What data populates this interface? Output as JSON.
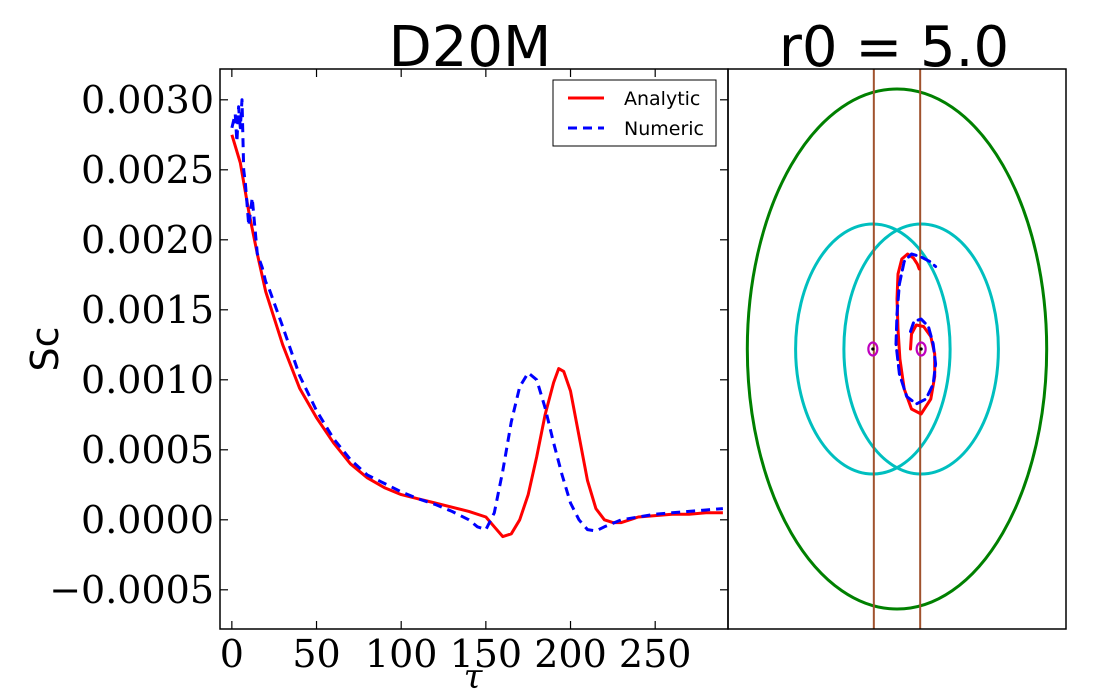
{
  "chart_data": [
    {
      "type": "line",
      "title": "D20M",
      "xlabel": "τ",
      "ylabel": "Sc",
      "xlim": [
        -7,
        293
      ],
      "ylim": [
        -0.00078,
        0.00322
      ],
      "xticks": [
        0,
        50,
        100,
        150,
        200,
        250
      ],
      "yticks": [
        -0.0005,
        0.0,
        0.0005,
        0.001,
        0.0015,
        0.002,
        0.0025,
        0.003
      ],
      "ytick_labels": [
        "−0.0005",
        "0.0000",
        "0.0005",
        "0.0010",
        "0.0015",
        "0.0020",
        "0.0025",
        "0.0030"
      ],
      "grid": false,
      "legend": "top-right",
      "series": [
        {
          "name": "Analytic",
          "color": "#ff0000",
          "style": "solid",
          "x": [
            0,
            5,
            10,
            15,
            20,
            30,
            40,
            50,
            60,
            70,
            80,
            90,
            100,
            110,
            120,
            130,
            140,
            150,
            155,
            160,
            165,
            170,
            175,
            180,
            185,
            190,
            193,
            196,
            200,
            205,
            210,
            215,
            220,
            225,
            230,
            240,
            250,
            260,
            270,
            280,
            290
          ],
          "y": [
            0.00275,
            0.00255,
            0.0022,
            0.0019,
            0.00163,
            0.00125,
            0.00094,
            0.00073,
            0.00055,
            0.0004,
            0.0003,
            0.00023,
            0.00018,
            0.00015,
            0.00012,
            9e-05,
            6e-05,
            2e-05,
            -5e-05,
            -0.00012,
            -0.0001,
            0.0,
            0.00018,
            0.00045,
            0.00075,
            0.00098,
            0.00108,
            0.00106,
            0.00092,
            0.0006,
            0.00028,
            8e-05,
            0.0,
            -2e-05,
            -2e-05,
            2e-05,
            3e-05,
            4e-05,
            4e-05,
            5e-05,
            5e-05
          ]
        },
        {
          "name": "Numeric",
          "color": "#0000ff",
          "style": "dashed",
          "x": [
            0,
            2,
            3,
            4,
            5,
            6,
            7,
            8,
            10,
            12,
            15,
            18,
            20,
            22,
            30,
            40,
            50,
            60,
            70,
            80,
            90,
            100,
            110,
            120,
            130,
            140,
            145,
            150,
            155,
            160,
            165,
            170,
            175,
            180,
            185,
            190,
            195,
            200,
            205,
            210,
            215,
            220,
            230,
            240,
            250,
            260,
            270,
            280,
            290
          ],
          "y": [
            0.0028,
            0.0029,
            0.0027,
            0.00295,
            0.0028,
            0.003,
            0.0025,
            0.0024,
            0.0021,
            0.0023,
            0.0019,
            0.0018,
            0.0017,
            0.00165,
            0.00138,
            0.00103,
            0.00078,
            0.00058,
            0.00043,
            0.00032,
            0.00026,
            0.0002,
            0.00015,
            0.00011,
            6e-05,
            0.0,
            -5e-05,
            -7e-05,
            5e-05,
            0.00035,
            0.0007,
            0.00095,
            0.00105,
            0.001,
            0.0008,
            0.00055,
            0.00032,
            0.00012,
            0.0,
            -7e-05,
            -8e-05,
            -5e-05,
            0.0,
            2e-05,
            4e-05,
            5e-05,
            6e-05,
            7e-05,
            8e-05
          ]
        }
      ]
    },
    {
      "type": "diagram",
      "title": "r0 = 5.0",
      "xlim": [
        -3.5,
        3.5
      ],
      "ylim": [
        -5.6,
        5.6
      ],
      "axes_ticks": false,
      "elements": {
        "ellipses": [
          {
            "role": "outer",
            "color": "#008000",
            "cx": 0.0,
            "cy": 0.0,
            "rx": 3.1,
            "ry": 5.2
          },
          {
            "role": "left",
            "color": "#00bfbf",
            "cx": -0.5,
            "cy": 0.0,
            "rx": 1.6,
            "ry": 2.5
          },
          {
            "role": "right",
            "color": "#00bfbf",
            "cx": 0.5,
            "cy": 0.0,
            "rx": 1.6,
            "ry": 2.5
          }
        ],
        "vlines": [
          {
            "color": "#a0522d",
            "x": -0.48
          },
          {
            "color": "#a0522d",
            "x": 0.48
          }
        ],
        "markers": [
          {
            "color": "#bf00bf",
            "x": -0.5,
            "y": 0.0
          },
          {
            "color": "#bf00bf",
            "x": 0.5,
            "y": 0.0
          }
        ],
        "tracks": [
          {
            "name": "Analytic",
            "color": "#ff0000",
            "style": "solid",
            "x": [
              0.28,
              0.3,
              0.4,
              0.55,
              0.7,
              0.78,
              0.78,
              0.7,
              0.5,
              0.3,
              0.15,
              0.06,
              0.02,
              0.0,
              0.02,
              0.1,
              0.22,
              0.34,
              0.42,
              0.46
            ],
            "y": [
              0.0,
              0.3,
              0.48,
              0.45,
              0.25,
              -0.1,
              -0.55,
              -1.0,
              -1.3,
              -1.2,
              -0.8,
              -0.2,
              0.4,
              1.0,
              1.5,
              1.8,
              1.9,
              1.82,
              1.7,
              1.6
            ]
          },
          {
            "name": "Numeric",
            "color": "#0000ff",
            "style": "dashed",
            "x": [
              0.28,
              0.35,
              0.5,
              0.65,
              0.75,
              0.8,
              0.75,
              0.6,
              0.4,
              0.2,
              0.05,
              -0.02,
              0.0,
              0.05,
              0.15,
              0.3,
              0.48,
              0.68,
              0.8
            ],
            "y": [
              0.35,
              0.55,
              0.6,
              0.45,
              0.1,
              -0.3,
              -0.7,
              -1.0,
              -1.1,
              -0.95,
              -0.5,
              0.1,
              0.7,
              1.3,
              1.75,
              1.9,
              1.85,
              1.75,
              1.65
            ]
          }
        ]
      }
    }
  ]
}
